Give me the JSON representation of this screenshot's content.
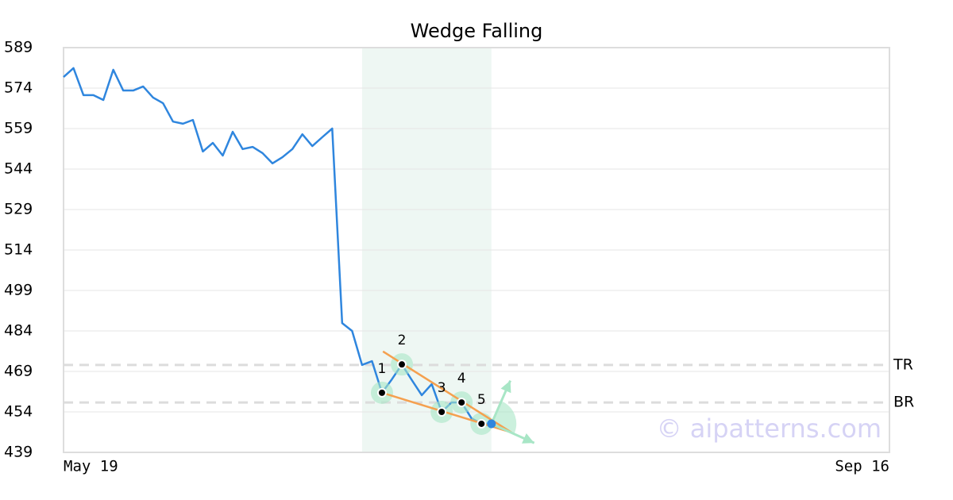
{
  "chart_data": {
    "type": "line",
    "title": "Wedge Falling",
    "watermark": "© aipatterns.com",
    "categories": [
      "May 19",
      null,
      null,
      null,
      null,
      null,
      null,
      null,
      null,
      null,
      null,
      null,
      null,
      null,
      null,
      null,
      null,
      null,
      null,
      null,
      null,
      null,
      null,
      null,
      null,
      null,
      null,
      null,
      null,
      null,
      null,
      null,
      null,
      null,
      null,
      null,
      null,
      null,
      null,
      null,
      null,
      null,
      null,
      null,
      null,
      null,
      null,
      null,
      null,
      null,
      null,
      null,
      null,
      null,
      null,
      null,
      null,
      null,
      null,
      null,
      null,
      null,
      null,
      null,
      null,
      null,
      null,
      null,
      null,
      null,
      null,
      null,
      null,
      null,
      null,
      null,
      null,
      null,
      null,
      null,
      null,
      null,
      null,
      "Sep 16"
    ],
    "series": [
      {
        "color": "#2f86de",
        "values": [
          578.1,
          581.4,
          571.4,
          571.4,
          569.6,
          580.8,
          573.1,
          573.1,
          574.6,
          570.5,
          568.4,
          561.6,
          560.8,
          562.2,
          550.5,
          553.7,
          549.0,
          557.8,
          551.4,
          552.2,
          549.9,
          546.1,
          548.4,
          551.4,
          556.9,
          552.5,
          555.8,
          559.0,
          486.9,
          484.0,
          471.4,
          472.8,
          461.1,
          466.1,
          471.6,
          465.8,
          460.2,
          464.3,
          454.0,
          457.5,
          457.5,
          451.6,
          449.6,
          449.6,
          null,
          null,
          null,
          null,
          null,
          null,
          null,
          null,
          null,
          null,
          null,
          null,
          null,
          null,
          null,
          null,
          null,
          null,
          null,
          null,
          null,
          null,
          null,
          null,
          null,
          null,
          null,
          null,
          null,
          null,
          null,
          null,
          null,
          null,
          null,
          null,
          null,
          null,
          null,
          null
        ]
      }
    ],
    "ylim": [
      439,
      589
    ],
    "yticks": [
      439,
      454,
      469,
      484,
      499,
      514,
      529,
      544,
      559,
      574,
      589
    ],
    "grid": true,
    "highlight_x": [
      30,
      43
    ],
    "highlight_color": "#eef7f3",
    "levels": [
      {
        "label": "TR",
        "value": 471.4
      },
      {
        "label": "BR",
        "value": 457.5
      }
    ],
    "pattern_points": [
      {
        "label": "1",
        "x": 32
      },
      {
        "label": "2",
        "x": 34
      },
      {
        "label": "3",
        "x": 38
      },
      {
        "label": "4",
        "x": 40
      },
      {
        "label": "5",
        "x": 42
      }
    ],
    "trendlines": [
      {
        "color": "#f5a04f",
        "x": [
          32.1,
          45
        ],
        "values": [
          476.4,
          446.4
        ]
      },
      {
        "color": "#f5a04f",
        "x": [
          32,
          45
        ],
        "values": [
          461.1,
          446.4
        ]
      }
    ],
    "arrows": [
      {
        "color": "#a8e6c6",
        "x": [
          43,
          44.9
        ],
        "values": [
          449.6,
          465.6
        ]
      },
      {
        "color": "#a8e6c6",
        "x": [
          43,
          47.3
        ],
        "values": [
          449.6,
          442.5
        ]
      }
    ]
  }
}
